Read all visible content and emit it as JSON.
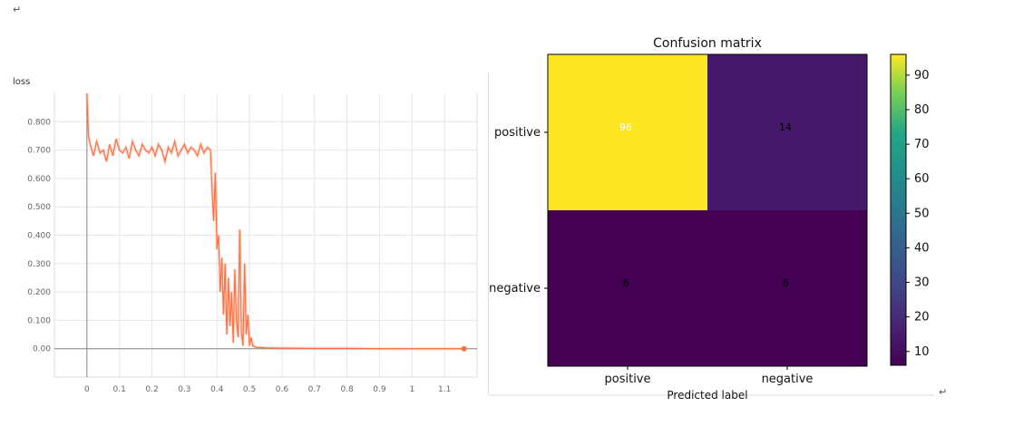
{
  "marks": {
    "left_return": "↵",
    "right_return": "↵"
  },
  "chart_data": [
    {
      "type": "line",
      "title": "loss",
      "xlabel": "",
      "ylabel": "",
      "xlim": [
        -0.1,
        1.2
      ],
      "ylim": [
        -0.1,
        0.9
      ],
      "xticks": [
        "0",
        "0.1",
        "0.2",
        "0.3",
        "0.4",
        "0.5",
        "0.6",
        "0.7",
        "0.8",
        "0.9",
        "1",
        "1.1"
      ],
      "yticks": [
        "0.00",
        "0.100",
        "0.200",
        "0.300",
        "0.400",
        "0.500",
        "0.600",
        "0.700",
        "0.800"
      ],
      "grid": true,
      "series": [
        {
          "color": "#ff7043",
          "x": [
            0,
            0.005,
            0.01,
            0.02,
            0.03,
            0.04,
            0.05,
            0.06,
            0.07,
            0.08,
            0.09,
            0.1,
            0.11,
            0.12,
            0.13,
            0.14,
            0.15,
            0.16,
            0.17,
            0.18,
            0.19,
            0.2,
            0.21,
            0.22,
            0.23,
            0.24,
            0.25,
            0.26,
            0.27,
            0.28,
            0.29,
            0.3,
            0.31,
            0.32,
            0.33,
            0.34,
            0.35,
            0.36,
            0.37,
            0.38,
            0.385,
            0.39,
            0.395,
            0.4,
            0.405,
            0.41,
            0.415,
            0.42,
            0.425,
            0.43,
            0.435,
            0.44,
            0.445,
            0.45,
            0.455,
            0.46,
            0.465,
            0.47,
            0.475,
            0.48,
            0.485,
            0.49,
            0.495,
            0.5,
            0.505,
            0.51,
            0.52,
            0.55,
            0.6,
            0.7,
            0.8,
            0.9,
            1.0,
            1.1,
            1.16
          ],
          "y": [
            0.9,
            0.75,
            0.72,
            0.68,
            0.73,
            0.69,
            0.7,
            0.66,
            0.72,
            0.68,
            0.74,
            0.7,
            0.69,
            0.71,
            0.67,
            0.73,
            0.7,
            0.68,
            0.72,
            0.7,
            0.69,
            0.71,
            0.68,
            0.72,
            0.7,
            0.66,
            0.71,
            0.69,
            0.73,
            0.68,
            0.7,
            0.72,
            0.69,
            0.71,
            0.7,
            0.68,
            0.72,
            0.69,
            0.71,
            0.7,
            0.55,
            0.45,
            0.62,
            0.35,
            0.4,
            0.2,
            0.32,
            0.12,
            0.3,
            0.05,
            0.25,
            0.08,
            0.2,
            0.02,
            0.28,
            0.1,
            0.04,
            0.42,
            0.06,
            0.01,
            0.3,
            0.05,
            0.12,
            0.01,
            0.04,
            0.01,
            0.005,
            0.003,
            0.002,
            0.001,
            0.001,
            0.0,
            0.0,
            0.0,
            0.0
          ]
        }
      ]
    },
    {
      "type": "heatmap",
      "title": "Confusion matrix",
      "xlabel": "Predicted label",
      "ylabel": "",
      "rows": [
        "positive",
        "negative"
      ],
      "columns": [
        "positive",
        "negative"
      ],
      "values": [
        [
          96,
          14
        ],
        [
          6,
          6
        ]
      ],
      "colormap": "viridis",
      "colorbar_ticks": [
        "10",
        "20",
        "30",
        "40",
        "50",
        "60",
        "70",
        "80",
        "90"
      ],
      "colorbar_range": [
        6,
        96
      ]
    }
  ]
}
